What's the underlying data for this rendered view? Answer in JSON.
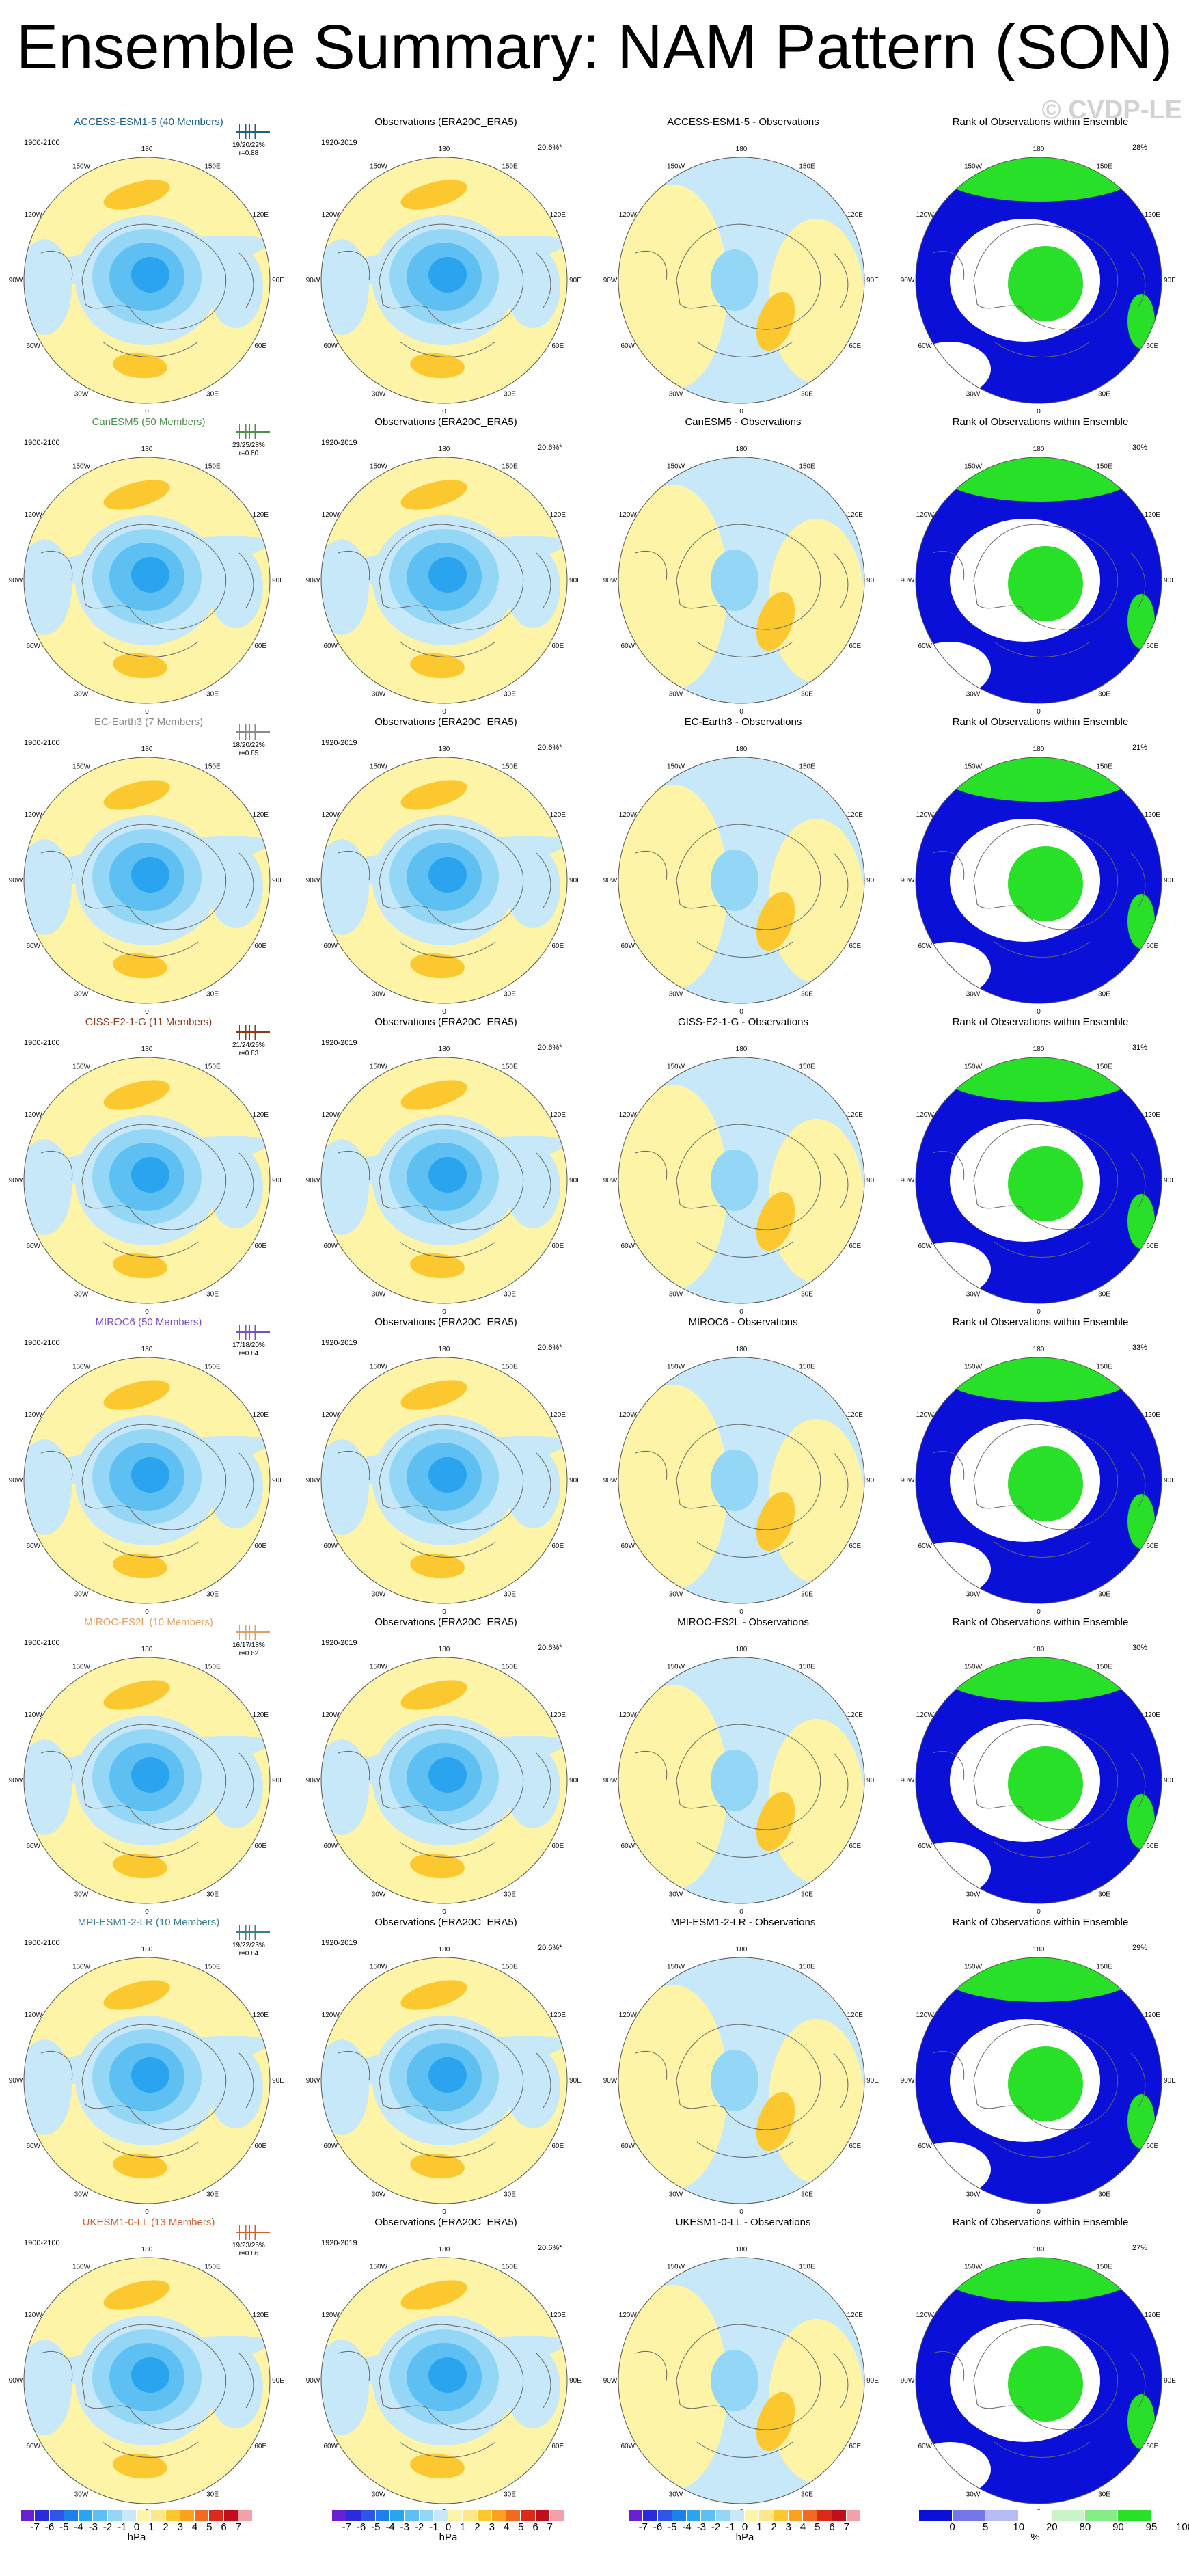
{
  "title": "Ensemble Summary: NAM Pattern (SON)",
  "watermark": "© CVDP-LE",
  "obs_title": "Observations (ERA20C_ERA5)",
  "obs_period": "1920-2019",
  "obs_pct": "20.6%*",
  "rank_title": "Rank of Observations within Ensemble",
  "model_period": "1900-2100",
  "map_labels": {
    "n180": "180",
    "w150": "150W",
    "e150": "150E",
    "w120": "120W",
    "e120": "120E",
    "w90": "90W",
    "e90": "90E",
    "w60": "60W",
    "e60": "60E",
    "w30": "30W",
    "e30": "30E",
    "zero": "0"
  },
  "rows": [
    {
      "model_title": "ACCESS-ESM1-5 (40 Members)",
      "color": "#1f5f8b",
      "stats1": "19/20/22%",
      "stats2": "r=0.88",
      "diff_title": "ACCESS-ESM1-5 - Observations",
      "rank_pct": "28%"
    },
    {
      "model_title": "CanESM5 (50 Members)",
      "color": "#4f8f4f",
      "stats1": "23/25/28%",
      "stats2": "r=0.80",
      "diff_title": "CanESM5 - Observations",
      "rank_pct": "30%"
    },
    {
      "model_title": "EC-Earth3 (7 Members)",
      "color": "#8a8a8a",
      "stats1": "18/20/22%",
      "stats2": "r=0.85",
      "diff_title": "EC-Earth3 - Observations",
      "rank_pct": "21%"
    },
    {
      "model_title": "GISS-E2-1-G (11 Members)",
      "color": "#8b3a1a",
      "stats1": "21/24/26%",
      "stats2": "r=0.83",
      "diff_title": "GISS-E2-1-G - Observations",
      "rank_pct": "31%"
    },
    {
      "model_title": "MIROC6 (50 Members)",
      "color": "#7a4fc4",
      "stats1": "17/18/20%",
      "stats2": "r=0.84",
      "diff_title": "MIROC6 - Observations",
      "rank_pct": "33%"
    },
    {
      "model_title": "MIROC-ES2L (10 Members)",
      "color": "#e0a060",
      "stats1": "16/17/18%",
      "stats2": "r=0.62",
      "diff_title": "MIROC-ES2L - Observations",
      "rank_pct": "30%"
    },
    {
      "model_title": "MPI-ESM1-2-LR (10 Members)",
      "color": "#3a7f8f",
      "stats1": "19/22/23%",
      "stats2": "r=0.84",
      "diff_title": "MPI-ESM1-2-LR - Observations",
      "rank_pct": "29%"
    },
    {
      "model_title": "UKESM1-0-LL (13 Members)",
      "color": "#d06030",
      "stats1": "19/23/25%",
      "stats2": "r=0.86",
      "diff_title": "UKESM1-0-LL - Observations",
      "rank_pct": "27%"
    }
  ],
  "colorbar_hpa": {
    "ticks": [
      "-7",
      "-6",
      "-5",
      "-4",
      "-3",
      "-2",
      "-1",
      "0",
      "1",
      "2",
      "3",
      "4",
      "5",
      "6",
      "7"
    ],
    "unit": "hPa",
    "colors": [
      "#6a1fd0",
      "#2a2adf",
      "#2d55e6",
      "#1f7fe8",
      "#2aa4ee",
      "#5ec0f2",
      "#94d6f5",
      "#c6e8f8",
      "#fdf4a8",
      "#fee78a",
      "#fcc830",
      "#f8a21f",
      "#ef6b1f",
      "#dc2a1a",
      "#bf0f1a",
      "#f2a0a8"
    ]
  },
  "colorbar_rank": {
    "ticks": [
      "0",
      "5",
      "10",
      "20",
      "80",
      "90",
      "95",
      "100"
    ],
    "unit": "%",
    "colors": [
      "#0a10d8",
      "#7378e8",
      "#b8bcf2",
      "#ffffff",
      "#c8f4c8",
      "#86ec86",
      "#28e028"
    ]
  },
  "palette": {
    "yellow": "#fdf4a8",
    "orange": "#fcc830",
    "lightblue": "#c6e8f8",
    "midblue": "#94d6f5",
    "blue": "#5ec0f2",
    "deepblue": "#2aa4ee",
    "rankblue": "#0a10d8",
    "rankgreen": "#28e028"
  }
}
